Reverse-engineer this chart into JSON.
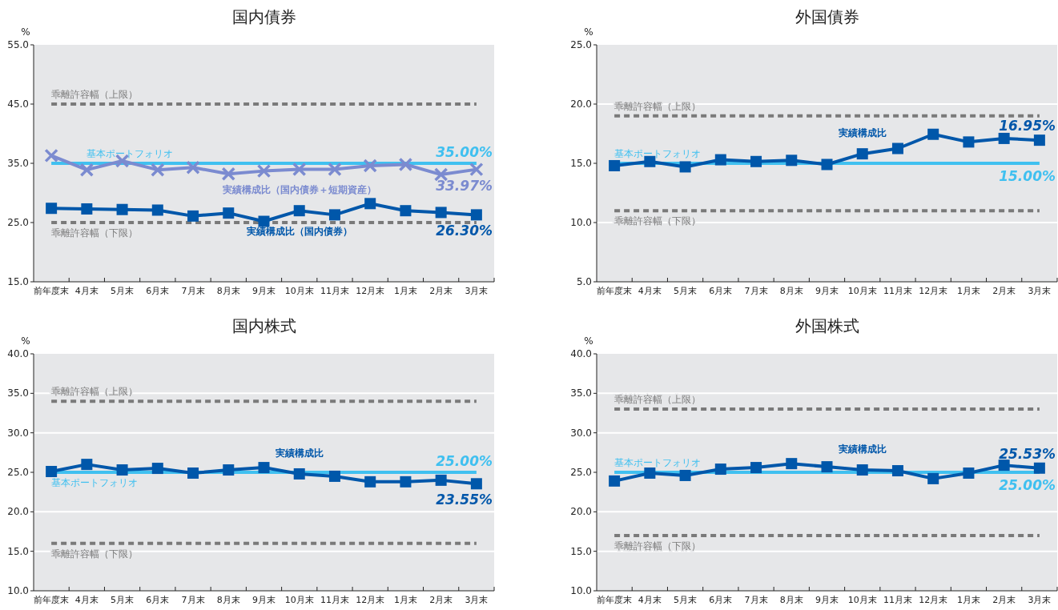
{
  "chart_data": [
    {
      "type": "line",
      "title": "国内債券",
      "ylabel": "%",
      "categories": [
        "前年度末",
        "4月末",
        "5月末",
        "6月末",
        "7月末",
        "8月末",
        "9月末",
        "10月末",
        "11月末",
        "12月末",
        "1月末",
        "2月末",
        "3月末"
      ],
      "ylim": [
        15,
        55
      ],
      "yticks": [
        {
          "value": 15,
          "label": "15.0"
        },
        {
          "value": 25,
          "label": "25.0"
        },
        {
          "value": 35,
          "label": "35.0"
        },
        {
          "value": 45,
          "label": "45.0"
        },
        {
          "value": 55,
          "label": "55.0"
        }
      ],
      "series": [
        {
          "name": "実績構成比（国内債券＋短期資産）",
          "color": "#7b8bd0",
          "marker": "cross",
          "values": [
            36.3,
            33.9,
            35.4,
            33.9,
            34.3,
            33.2,
            33.7,
            34.0,
            34.0,
            34.6,
            34.8,
            33.1,
            33.97
          ],
          "value_labels": [
            null,
            null,
            null,
            null,
            null,
            null,
            null,
            null,
            null,
            null,
            null,
            null,
            "33.97%"
          ]
        },
        {
          "name": "実績構成比（国内債券）",
          "color": "#0057aa",
          "marker": "square",
          "values": [
            27.4,
            27.3,
            27.2,
            27.1,
            26.1,
            26.6,
            25.2,
            27.0,
            26.3,
            28.2,
            27.0,
            26.7,
            26.3
          ],
          "value_labels": [
            null,
            null,
            null,
            null,
            null,
            null,
            null,
            null,
            null,
            null,
            null,
            null,
            "26.30%"
          ]
        }
      ],
      "ref_lines": [
        {
          "axis": "y",
          "value": 45,
          "label": "乖離許容幅（上限）",
          "color": "#7a7a7a",
          "line_style": "dashed"
        },
        {
          "axis": "y",
          "value": 35,
          "label": "基本ポートフォリオ",
          "color": "#40c0f0",
          "line_style": "solid"
        },
        {
          "axis": "y",
          "value": 25,
          "label": "乖離許容幅（下限）",
          "color": "#7a7a7a",
          "line_style": "dashed"
        }
      ],
      "annotations": [
        {
          "text": "35.00%",
          "x": "3月末",
          "y": 35
        }
      ]
    },
    {
      "type": "line",
      "title": "外国債券",
      "ylabel": "%",
      "categories": [
        "前年度末",
        "4月末",
        "5月末",
        "6月末",
        "7月末",
        "8月末",
        "9月末",
        "10月末",
        "11月末",
        "12月末",
        "1月末",
        "2月末",
        "3月末"
      ],
      "ylim": [
        5,
        25
      ],
      "yticks": [
        {
          "value": 5,
          "label": "5.0"
        },
        {
          "value": 10,
          "label": "10.0"
        },
        {
          "value": 15,
          "label": "15.0"
        },
        {
          "value": 20,
          "label": "20.0"
        },
        {
          "value": 25,
          "label": "25.0"
        }
      ],
      "grid": "y",
      "series": [
        {
          "name": "実績構成比",
          "color": "#0057aa",
          "marker": "square",
          "values": [
            14.8,
            15.15,
            14.7,
            15.3,
            15.15,
            15.25,
            14.9,
            15.8,
            16.25,
            17.45,
            16.8,
            17.1,
            16.95
          ],
          "value_labels": [
            null,
            null,
            null,
            null,
            null,
            null,
            null,
            null,
            null,
            null,
            null,
            null,
            "16.95%"
          ]
        }
      ],
      "ref_lines": [
        {
          "axis": "y",
          "value": 19,
          "label": "乖離許容幅（上限）",
          "color": "#7a7a7a",
          "line_style": "dashed"
        },
        {
          "axis": "y",
          "value": 15,
          "label": "基本ポートフォリオ",
          "color": "#40c0f0",
          "line_style": "solid"
        },
        {
          "axis": "y",
          "value": 11,
          "label": "乖離許容幅（下限）",
          "color": "#7a7a7a",
          "line_style": "dashed"
        }
      ],
      "annotations": [
        {
          "text": "15.00%",
          "x": "3月末",
          "y": 15
        }
      ]
    },
    {
      "type": "line",
      "title": "国内株式",
      "ylabel": "%",
      "categories": [
        "前年度末",
        "4月末",
        "5月末",
        "6月末",
        "7月末",
        "8月末",
        "9月末",
        "10月末",
        "11月末",
        "12月末",
        "1月末",
        "2月末",
        "3月末"
      ],
      "ylim": [
        10,
        40
      ],
      "yticks": [
        {
          "value": 10,
          "label": "10.0"
        },
        {
          "value": 15,
          "label": "15.0"
        },
        {
          "value": 20,
          "label": "20.0"
        },
        {
          "value": 25,
          "label": "25.0"
        },
        {
          "value": 30,
          "label": "30.0"
        },
        {
          "value": 35,
          "label": "35.0"
        },
        {
          "value": 40,
          "label": "40.0"
        }
      ],
      "grid": "y",
      "series": [
        {
          "name": "実績構成比",
          "color": "#0057aa",
          "marker": "square",
          "values": [
            25.1,
            26.0,
            25.3,
            25.5,
            24.9,
            25.3,
            25.6,
            24.8,
            24.5,
            23.8,
            23.8,
            24.0,
            23.55
          ],
          "value_labels": [
            null,
            null,
            null,
            null,
            null,
            null,
            null,
            null,
            null,
            null,
            null,
            null,
            "23.55%"
          ]
        }
      ],
      "ref_lines": [
        {
          "axis": "y",
          "value": 34,
          "label": "乖離許容幅（上限）",
          "color": "#7a7a7a",
          "line_style": "dashed"
        },
        {
          "axis": "y",
          "value": 25,
          "label": "基本ポートフォリオ",
          "color": "#40c0f0",
          "line_style": "solid"
        },
        {
          "axis": "y",
          "value": 16,
          "label": "乖離許容幅（下限）",
          "color": "#7a7a7a",
          "line_style": "dashed"
        }
      ],
      "annotations": [
        {
          "text": "25.00%",
          "x": "3月末",
          "y": 25
        }
      ]
    },
    {
      "type": "line",
      "title": "外国株式",
      "ylabel": "%",
      "categories": [
        "前年度末",
        "4月末",
        "5月末",
        "6月末",
        "7月末",
        "8月末",
        "9月末",
        "10月末",
        "11月末",
        "12月末",
        "1月末",
        "2月末",
        "3月末"
      ],
      "ylim": [
        10,
        40
      ],
      "yticks": [
        {
          "value": 10,
          "label": "10.0"
        },
        {
          "value": 15,
          "label": "15.0"
        },
        {
          "value": 20,
          "label": "20.0"
        },
        {
          "value": 25,
          "label": "25.0"
        },
        {
          "value": 30,
          "label": "30.0"
        },
        {
          "value": 35,
          "label": "35.0"
        },
        {
          "value": 40,
          "label": "40.0"
        }
      ],
      "grid": "y",
      "series": [
        {
          "name": "実績構成比",
          "color": "#0057aa",
          "marker": "square",
          "values": [
            23.9,
            24.9,
            24.6,
            25.4,
            25.6,
            26.1,
            25.7,
            25.3,
            25.2,
            24.2,
            24.9,
            25.9,
            25.53
          ],
          "value_labels": [
            null,
            null,
            null,
            null,
            null,
            null,
            null,
            null,
            null,
            null,
            null,
            null,
            "25.53%"
          ]
        }
      ],
      "ref_lines": [
        {
          "axis": "y",
          "value": 33,
          "label": "乖離許容幅（上限）",
          "color": "#7a7a7a",
          "line_style": "dashed"
        },
        {
          "axis": "y",
          "value": 25,
          "label": "基本ポートフォリオ",
          "color": "#40c0f0",
          "line_style": "solid"
        },
        {
          "axis": "y",
          "value": 17,
          "label": "乖離許容幅（下限）",
          "color": "#7a7a7a",
          "line_style": "dashed"
        }
      ],
      "annotations": [
        {
          "text": "25.00%",
          "x": "3月末",
          "y": 25
        }
      ]
    }
  ]
}
